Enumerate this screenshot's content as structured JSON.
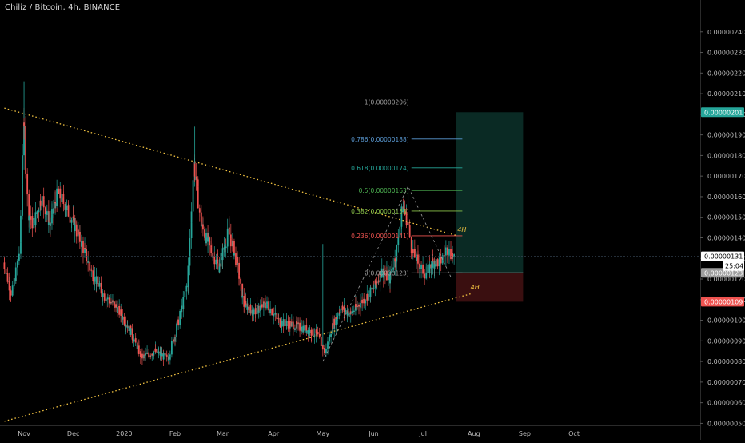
{
  "header": {
    "symbol": "Chiliz / Bitcoin",
    "interval": "4h",
    "exchange": "BINANCE"
  },
  "colors": {
    "background": "#000000",
    "candle_up": "#26a69a",
    "candle_down": "#ef5350",
    "trendline": "#f5c542",
    "fib_level_text": "#8f8f8f",
    "target_zone": "#0a2a24",
    "stop_zone": "#3a0f10",
    "price_tag_current": "#ffffff",
    "price_tag_target": "#26a69a",
    "price_tag_stop": "#ef5350",
    "price_tag_entry": "#9e9e9e",
    "annotation_4h": "#f5c542"
  },
  "chart_data": {
    "type": "candlestick",
    "title": "Chiliz / Bitcoin, 4h, BINANCE",
    "ylim": [
      5e-07,
      2.45e-06
    ],
    "y_ticks": [
      "0.00000240",
      "0.00000230",
      "0.00000220",
      "0.00000210",
      "0.00000200",
      "0.00000190",
      "0.00000180",
      "0.00000170",
      "0.00000160",
      "0.00000150",
      "0.00000140",
      "0.00000130",
      "0.00000120",
      "0.00000110",
      "0.00000100",
      "0.00000090",
      "0.00000080",
      "0.00000070",
      "0.00000060",
      "0.00000050"
    ],
    "x_ticks": [
      "Nov",
      "Dec",
      "2020",
      "Feb",
      "Mar",
      "Apr",
      "May",
      "Jun",
      "Jul",
      "Aug",
      "Sep",
      "Oct"
    ],
    "price_path": [
      {
        "x": "2019-10-20",
        "y": 1.28e-06
      },
      {
        "x": "2019-10-25",
        "y": 1.12e-06
      },
      {
        "x": "2019-10-30",
        "y": 1.35e-06
      },
      {
        "x": "2019-11-01",
        "y": 1.98e-06
      },
      {
        "x": "2019-11-04",
        "y": 1.52e-06
      },
      {
        "x": "2019-11-07",
        "y": 1.46e-06
      },
      {
        "x": "2019-11-12",
        "y": 1.6e-06
      },
      {
        "x": "2019-11-17",
        "y": 1.46e-06
      },
      {
        "x": "2019-11-22",
        "y": 1.62e-06
      },
      {
        "x": "2019-11-27",
        "y": 1.55e-06
      },
      {
        "x": "2019-12-02",
        "y": 1.46e-06
      },
      {
        "x": "2019-12-07",
        "y": 1.36e-06
      },
      {
        "x": "2019-12-12",
        "y": 1.24e-06
      },
      {
        "x": "2019-12-20",
        "y": 1.12e-06
      },
      {
        "x": "2019-12-28",
        "y": 1.06e-06
      },
      {
        "x": "2020-01-05",
        "y": 9.5e-07
      },
      {
        "x": "2020-01-12",
        "y": 8.2e-07
      },
      {
        "x": "2020-01-20",
        "y": 8.5e-07
      },
      {
        "x": "2020-01-28",
        "y": 8.1e-07
      },
      {
        "x": "2020-02-05",
        "y": 1.04e-06
      },
      {
        "x": "2020-02-09",
        "y": 1.18e-06
      },
      {
        "x": "2020-02-13",
        "y": 1.76e-06
      },
      {
        "x": "2020-02-17",
        "y": 1.47e-06
      },
      {
        "x": "2020-02-22",
        "y": 1.36e-06
      },
      {
        "x": "2020-02-28",
        "y": 1.26e-06
      },
      {
        "x": "2020-03-05",
        "y": 1.43e-06
      },
      {
        "x": "2020-03-10",
        "y": 1.28e-06
      },
      {
        "x": "2020-03-14",
        "y": 1.08e-06
      },
      {
        "x": "2020-03-20",
        "y": 1.04e-06
      },
      {
        "x": "2020-03-28",
        "y": 1.08e-06
      },
      {
        "x": "2020-04-05",
        "y": 9.9e-07
      },
      {
        "x": "2020-04-12",
        "y": 9.8e-07
      },
      {
        "x": "2020-04-20",
        "y": 9.6e-07
      },
      {
        "x": "2020-04-28",
        "y": 9.3e-07
      },
      {
        "x": "2020-05-03",
        "y": 8.4e-07
      },
      {
        "x": "2020-05-07",
        "y": 9.7e-07
      },
      {
        "x": "2020-05-12",
        "y": 1.06e-06
      },
      {
        "x": "2020-05-18",
        "y": 1.03e-06
      },
      {
        "x": "2020-05-25",
        "y": 1.09e-06
      },
      {
        "x": "2020-06-01",
        "y": 1.15e-06
      },
      {
        "x": "2020-06-06",
        "y": 1.24e-06
      },
      {
        "x": "2020-06-11",
        "y": 1.2e-06
      },
      {
        "x": "2020-06-15",
        "y": 1.32e-06
      },
      {
        "x": "2020-06-19",
        "y": 1.55e-06
      },
      {
        "x": "2020-06-22",
        "y": 1.48e-06
      },
      {
        "x": "2020-06-25",
        "y": 1.33e-06
      },
      {
        "x": "2020-06-29",
        "y": 1.27e-06
      },
      {
        "x": "2020-07-03",
        "y": 1.22e-06
      },
      {
        "x": "2020-07-07",
        "y": 1.28e-06
      },
      {
        "x": "2020-07-12",
        "y": 1.28e-06
      },
      {
        "x": "2020-07-16",
        "y": 1.35e-06
      },
      {
        "x": "2020-07-20",
        "y": 1.31e-06
      }
    ],
    "last_price": "0.00000131",
    "countdown": "25:04"
  },
  "trendlines": [
    {
      "name": "descending-resistance",
      "from": {
        "x": "2019-10-20",
        "y": 2.03e-06
      },
      "to": {
        "x": "2020-07-22",
        "y": 1.41e-06
      }
    },
    {
      "name": "ascending-support",
      "from": {
        "x": "2019-10-20",
        "y": 5.1e-07
      },
      "to": {
        "x": "2020-07-31",
        "y": 1.13e-06
      }
    }
  ],
  "annotations_4h": [
    {
      "text": "4H",
      "x": "2020-07-22",
      "y": 1.43e-06
    },
    {
      "text": "4H",
      "x": "2020-07-30",
      "y": 1.15e-06
    }
  ],
  "fib_retracement": {
    "start_date": "2020-06-24",
    "end_date": "2020-07-25",
    "levels": [
      {
        "label": "1(0.00000206)",
        "value": 2.06e-06,
        "color": "#9e9e9e"
      },
      {
        "label": "0.786(0.00000188)",
        "value": 1.88e-06,
        "color": "#5b9bd5"
      },
      {
        "label": "0.618(0.00000174)",
        "value": 1.74e-06,
        "color": "#26a69a"
      },
      {
        "label": "0.5(0.00000163)",
        "value": 1.63e-06,
        "color": "#4caf50"
      },
      {
        "label": "0.382(0.00000153)",
        "value": 1.53e-06,
        "color": "#8bc34a"
      },
      {
        "label": "0.236(0.00000141)",
        "value": 1.41e-06,
        "color": "#ef5350"
      },
      {
        "label": "0(0.00000123)",
        "value": 1.23e-06,
        "color": "#9e9e9e"
      }
    ]
  },
  "position": {
    "start_date": "2020-07-21",
    "end_date": "2020-08-31",
    "target": 2.01e-06,
    "entry": 1.23e-06,
    "stop": 1.09e-06
  },
  "price_tags": [
    {
      "text": "0.00000201",
      "value": 2.01e-06,
      "kind": "target"
    },
    {
      "text": "0.00000131",
      "value": 1.31e-06,
      "kind": "current"
    },
    {
      "text": "0.00000123",
      "value": 1.23e-06,
      "kind": "entry"
    },
    {
      "text": "0.00000109",
      "value": 1.09e-06,
      "kind": "stop"
    }
  ]
}
